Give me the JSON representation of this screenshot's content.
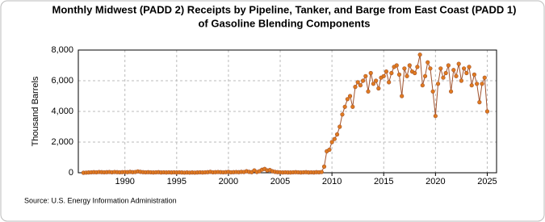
{
  "chart_data": {
    "type": "line",
    "title": [
      "Monthly Midwest (PADD 2) Receipts by Pipeline, Tanker, and Barge from East Coast (PADD 1)",
      "of Gasoline Blending Components"
    ],
    "y_label": "Thousand Barrels",
    "source": "Source: U.S. Energy Information Administration",
    "color": "#e07a1f",
    "line_color": "#a0522d",
    "grid": true,
    "x": [
      1986,
      1986.25,
      1986.5,
      1986.75,
      1987,
      1987.25,
      1987.5,
      1987.75,
      1988,
      1988.25,
      1988.5,
      1988.75,
      1989,
      1989.25,
      1989.5,
      1989.75,
      1990,
      1990.25,
      1990.5,
      1990.75,
      1991,
      1991.25,
      1991.5,
      1991.75,
      1992,
      1992.25,
      1992.5,
      1992.75,
      1993,
      1993.25,
      1993.5,
      1993.75,
      1994,
      1994.25,
      1994.5,
      1994.75,
      1995,
      1995.25,
      1995.5,
      1995.75,
      1996,
      1996.25,
      1996.5,
      1996.75,
      1997,
      1997.25,
      1997.5,
      1997.75,
      1998,
      1998.25,
      1998.5,
      1998.75,
      1999,
      1999.25,
      1999.5,
      1999.75,
      2000,
      2000.25,
      2000.5,
      2000.75,
      2001,
      2001.25,
      2001.5,
      2001.75,
      2002,
      2002.25,
      2002.5,
      2002.75,
      2003,
      2003.25,
      2003.5,
      2003.75,
      2004,
      2004.25,
      2004.5,
      2004.75,
      2005,
      2005.25,
      2005.5,
      2005.75,
      2006,
      2006.25,
      2006.5,
      2006.75,
      2007,
      2007.25,
      2007.5,
      2007.75,
      2008,
      2008.25,
      2008.5,
      2008.75,
      2009,
      2009.25,
      2009.5,
      2009.75,
      2010,
      2010.25,
      2010.5,
      2010.75,
      2011,
      2011.25,
      2011.5,
      2011.75,
      2012,
      2012.25,
      2012.5,
      2012.75,
      2013,
      2013.25,
      2013.5,
      2013.75,
      2014,
      2014.25,
      2014.5,
      2014.75,
      2015,
      2015.25,
      2015.5,
      2015.75,
      2016,
      2016.25,
      2016.5,
      2016.75,
      2017,
      2017.25,
      2017.5,
      2017.75,
      2018,
      2018.25,
      2018.5,
      2018.75,
      2019,
      2019.25,
      2019.5,
      2019.75,
      2020,
      2020.25,
      2020.5,
      2020.75,
      2021,
      2021.25,
      2021.5,
      2021.75,
      2022,
      2022.25,
      2022.5,
      2022.75,
      2023,
      2023.25,
      2023.5,
      2023.75,
      2024,
      2024.25,
      2024.5,
      2024.75,
      2025
    ],
    "values": [
      0,
      10,
      20,
      30,
      40,
      30,
      50,
      40,
      30,
      40,
      50,
      30,
      50,
      40,
      30,
      40,
      50,
      40,
      60,
      40,
      50,
      90,
      60,
      40,
      30,
      40,
      30,
      20,
      30,
      40,
      20,
      30,
      20,
      30,
      20,
      30,
      20,
      30,
      20,
      10,
      20,
      10,
      20,
      10,
      20,
      30,
      20,
      30,
      40,
      60,
      30,
      40,
      50,
      40,
      30,
      40,
      60,
      30,
      40,
      50,
      40,
      60,
      50,
      100,
      60,
      40,
      150,
      50,
      100,
      200,
      250,
      150,
      180,
      100,
      60,
      40,
      30,
      20,
      30,
      20,
      20,
      30,
      40,
      30,
      20,
      30,
      40,
      20,
      30,
      20,
      40,
      30,
      50,
      400,
      1400,
      1500,
      2000,
      2200,
      2500,
      3000,
      3800,
      4300,
      4800,
      5000,
      4300,
      5600,
      5900,
      5700,
      6000,
      6300,
      5300,
      6500,
      5800,
      6000,
      5500,
      6200,
      6300,
      6600,
      5900,
      6500,
      6900,
      7000,
      6400,
      5000,
      6800,
      6300,
      7000,
      6600,
      6500,
      6900,
      7700,
      5700,
      6300,
      7200,
      6800,
      5300,
      3700,
      5800,
      6800,
      6200,
      6500,
      7000,
      5300,
      6700,
      6300,
      7100,
      6000,
      6800,
      6500,
      6900,
      5700,
      6400,
      5800,
      4600,
      5800,
      6200,
      4000
    ],
    "xlim": [
      1985.5,
      2025.9
    ],
    "xticks": [
      1990,
      1995,
      2000,
      2005,
      2010,
      2015,
      2020,
      2025
    ],
    "ylim": [
      0,
      8000
    ],
    "yticks": [
      0,
      {
        "value": 2000,
        "label": "2,000"
      },
      {
        "value": 4000,
        "label": "4,000"
      },
      {
        "value": 6000,
        "label": "6,000"
      },
      {
        "value": 8000,
        "label": "8,000"
      }
    ]
  }
}
